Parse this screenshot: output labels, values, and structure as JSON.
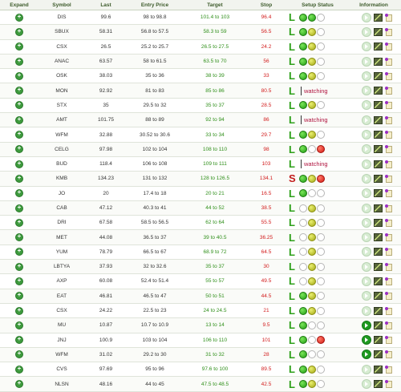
{
  "headers": {
    "expand": "Expand",
    "symbol": "Symbol",
    "last": "Last",
    "entry": "Entry Price",
    "target": "Target",
    "stop": "Stop",
    "setup": "Setup Status",
    "info": "Information"
  },
  "watching_label": "watching",
  "rows": [
    {
      "symbol": "DIS",
      "last": "99.6",
      "entry": "98 to 98.8",
      "target": "101.4 to 103",
      "stop": "96.4",
      "signal": "L",
      "status": "dots",
      "dots": [
        "g",
        "g",
        "e"
      ],
      "play": false
    },
    {
      "symbol": "SBUX",
      "last": "58.31",
      "entry": "56.8 to 57.5",
      "target": "58.3 to 59",
      "stop": "56.5",
      "signal": "L",
      "status": "dots",
      "dots": [
        "g",
        "y",
        "e"
      ],
      "play": false
    },
    {
      "symbol": "CSX",
      "last": "26.5",
      "entry": "25.2 to 25.7",
      "target": "26.5 to 27.5",
      "stop": "24.2",
      "signal": "L",
      "status": "dots",
      "dots": [
        "g",
        "y",
        "e"
      ],
      "play": false
    },
    {
      "symbol": "ANAC",
      "last": "63.57",
      "entry": "58 to 61.5",
      "target": "63.5 to 70",
      "stop": "56",
      "signal": "L",
      "status": "dots",
      "dots": [
        "g",
        "y",
        "e"
      ],
      "play": false
    },
    {
      "symbol": "OSK",
      "last": "38.03",
      "entry": "35 to 36",
      "target": "38 to 39",
      "stop": "33",
      "signal": "L",
      "status": "dots",
      "dots": [
        "g",
        "y",
        "e"
      ],
      "play": false
    },
    {
      "symbol": "MON",
      "last": "92.92",
      "entry": "81 to 83",
      "target": "85 to 86",
      "stop": "80.5",
      "signal": "L",
      "status": "watching",
      "dots": [],
      "play": false
    },
    {
      "symbol": "STX",
      "last": "35",
      "entry": "29.5 to 32",
      "target": "35 to 37",
      "stop": "28.5",
      "signal": "L",
      "status": "dots",
      "dots": [
        "g",
        "y",
        "e"
      ],
      "play": false
    },
    {
      "symbol": "AMT",
      "last": "101.75",
      "entry": "88 to 89",
      "target": "92 to 94",
      "stop": "86",
      "signal": "L",
      "status": "watching",
      "dots": [],
      "play": false
    },
    {
      "symbol": "WFM",
      "last": "32.88",
      "entry": "30.52 to 30.6",
      "target": "33 to 34",
      "stop": "29.7",
      "signal": "L",
      "status": "dots",
      "dots": [
        "g",
        "y",
        "e"
      ],
      "play": false
    },
    {
      "symbol": "CELG",
      "last": "97.98",
      "entry": "102 to 104",
      "target": "108 to 110",
      "stop": "98",
      "signal": "L",
      "status": "dots",
      "dots": [
        "g",
        "e",
        "r"
      ],
      "play": false
    },
    {
      "symbol": "BUD",
      "last": "118.4",
      "entry": "106 to 108",
      "target": "109 to 111",
      "stop": "103",
      "signal": "L",
      "status": "watching",
      "dots": [],
      "play": false
    },
    {
      "symbol": "KMB",
      "last": "134.23",
      "entry": "131 to 132",
      "target": "128 to 126.5",
      "stop": "134.1",
      "signal": "S",
      "status": "dots",
      "dots": [
        "g",
        "y",
        "r"
      ],
      "play": false
    },
    {
      "symbol": "JO",
      "last": "20",
      "entry": "17.4 to 18",
      "target": "20 to 21",
      "stop": "16.5",
      "signal": "L",
      "status": "dots",
      "dots": [
        "g",
        "e",
        "e"
      ],
      "play": false
    },
    {
      "symbol": "CAB",
      "last": "47.12",
      "entry": "40.3 to 41",
      "target": "44 to 52",
      "stop": "38.5",
      "signal": "L",
      "status": "dots",
      "dots": [
        "e",
        "y",
        "e"
      ],
      "play": false
    },
    {
      "symbol": "DRI",
      "last": "67.58",
      "entry": "58.5 to 56.5",
      "target": "62 to 64",
      "stop": "55.5",
      "signal": "L",
      "status": "dots",
      "dots": [
        "e",
        "y",
        "e"
      ],
      "play": false
    },
    {
      "symbol": "MET",
      "last": "44.08",
      "entry": "36.5 to 37",
      "target": "39 to 40.5",
      "stop": "36.25",
      "signal": "L",
      "status": "dots",
      "dots": [
        "e",
        "y",
        "e"
      ],
      "play": false
    },
    {
      "symbol": "YUM",
      "last": "78.79",
      "entry": "66.5 to 67",
      "target": "68.9 to 72",
      "stop": "64.5",
      "signal": "L",
      "status": "dots",
      "dots": [
        "e",
        "y",
        "e"
      ],
      "play": false
    },
    {
      "symbol": "LBTYA",
      "last": "37.93",
      "entry": "32 to 32.6",
      "target": "35 to 37",
      "stop": "30",
      "signal": "L",
      "status": "dots",
      "dots": [
        "e",
        "y",
        "e"
      ],
      "play": false
    },
    {
      "symbol": "AXP",
      "last": "60.08",
      "entry": "52.4 to 51.4",
      "target": "55 to 57",
      "stop": "49.5",
      "signal": "L",
      "status": "dots",
      "dots": [
        "e",
        "y",
        "e"
      ],
      "play": false
    },
    {
      "symbol": "EAT",
      "last": "46.81",
      "entry": "46.5 to 47",
      "target": "50 to 51",
      "stop": "44.5",
      "signal": "L",
      "status": "dots",
      "dots": [
        "g",
        "y",
        "e"
      ],
      "play": false
    },
    {
      "symbol": "CSX",
      "last": "24.22",
      "entry": "22.5 to 23",
      "target": "24 to 24.5",
      "stop": "21",
      "signal": "L",
      "status": "dots",
      "dots": [
        "g",
        "y",
        "e"
      ],
      "play": false
    },
    {
      "symbol": "MU",
      "last": "10.87",
      "entry": "10.7 to 10.9",
      "target": "13 to 14",
      "stop": "9.5",
      "signal": "L",
      "status": "dots",
      "dots": [
        "g",
        "e",
        "e"
      ],
      "play": true
    },
    {
      "symbol": "JNJ",
      "last": "100.9",
      "entry": "103 to 104",
      "target": "106 to 110",
      "stop": "101",
      "signal": "L",
      "status": "dots",
      "dots": [
        "g",
        "e",
        "r"
      ],
      "play": true
    },
    {
      "symbol": "WFM",
      "last": "31.02",
      "entry": "29.2 to 30",
      "target": "31 to 32",
      "stop": "28",
      "signal": "L",
      "status": "dots",
      "dots": [
        "g",
        "e",
        "e"
      ],
      "play": true
    },
    {
      "symbol": "CVS",
      "last": "97.69",
      "entry": "95 to 96",
      "target": "97.6 to 100",
      "stop": "89.5",
      "signal": "L",
      "status": "dots",
      "dots": [
        "g",
        "y",
        "e"
      ],
      "play": false
    },
    {
      "symbol": "NLSN",
      "last": "48.16",
      "entry": "44 to 45",
      "target": "47.5 to 48.5",
      "stop": "42.5",
      "signal": "L",
      "status": "dots",
      "dots": [
        "g",
        "y",
        "e"
      ],
      "play": false
    }
  ],
  "colors": {
    "target": "#2f8f1a",
    "stop": "#d21c1c",
    "long": "#2ea01a",
    "short": "#c21b1b",
    "watching": "#b0143f"
  }
}
